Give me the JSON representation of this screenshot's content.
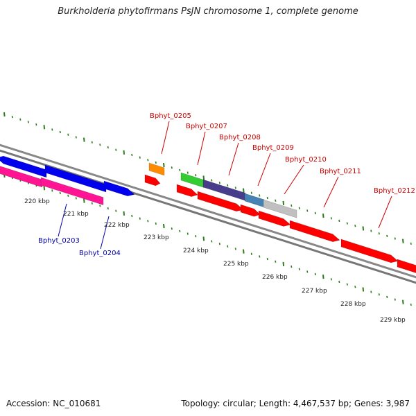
{
  "title": "Burkholderia phytofirmans PsJN chromosome 1, complete genome",
  "footer": {
    "accession": "Accession: NC_010681",
    "topology": "Topology: circular; Length: 4,467,537 bp; Genes: 3,987"
  },
  "colors": {
    "backbone": "#888888",
    "tick": "#2e7d1a",
    "upper_label": "#cc0000",
    "lower_label": "#0000aa",
    "red": "#ff0000",
    "blue": "#0000ee",
    "pink": "#ff1493",
    "orange": "#ff8c00",
    "green": "#33cc33",
    "slate": "#483d8b",
    "steel": "#4682b4",
    "silver": "#c0c0c0"
  },
  "scale": {
    "kbp_labels": [
      "220 kbp",
      "221 kbp",
      "222 kbp",
      "223 kbp",
      "224 kbp",
      "225 kbp",
      "226 kbp",
      "227 kbp",
      "228 kbp",
      "229 kbp"
    ]
  },
  "genes_upper": [
    {
      "label": "Bphyt_0205",
      "color": "red"
    },
    {
      "label": "Bphyt_0207",
      "color": "red"
    },
    {
      "label": "Bphyt_0208",
      "color": "red"
    },
    {
      "label": "Bphyt_0209",
      "color": "red"
    },
    {
      "label": "Bphyt_0210",
      "color": "red"
    },
    {
      "label": "Bphyt_0211",
      "color": "red"
    },
    {
      "label": "Bphyt_0212",
      "color": "red"
    }
  ],
  "genes_lower": [
    {
      "label": "Bphyt_0203",
      "color": "blue"
    },
    {
      "label": "Bphyt_0204",
      "color": "blue"
    }
  ]
}
